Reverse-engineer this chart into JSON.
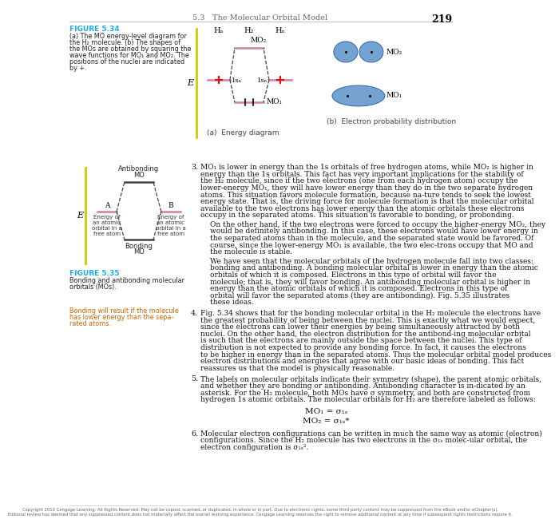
{
  "page_title": "5.3   The Molecular Orbital Model",
  "page_number": "219",
  "fig34_title": "FIGURE 5.34",
  "fig34_caption_lines": [
    "(a) The MO energy-level diagram for",
    "the H₂ molecule. (b) The shapes of",
    "the MOs are obtained by squaring the",
    "wave functions for MO₁ and MO₂. The",
    "positions of the nuclei are indicated",
    "by +."
  ],
  "fig34a_label": "(a)  Energy diagram",
  "fig34b_label": "(b)  Electron probability distribution",
  "fig35_title": "FIGURE 5.35",
  "fig35_caption_lines": [
    "Bonding and antibonding molecular",
    "orbitals (MOs)."
  ],
  "bonding_caption_lines": [
    "Bonding will result if the molecule",
    "has lower energy than the sepa-",
    "rated atoms."
  ],
  "copyright_text": "Copyright 2010 Cengage Learning. All Rights Reserved. May not be copied, scanned, or duplicated, in whole or in part. Due to electronic rights, some third party content may be suppressed from the eBook and/or eChapter(s). Editorial review has deemed that any suppressed content does not materially affect the overall learning experience. Cengage Learning reserves the right to remove additional content at any time if subsequent rights restrictions require it.",
  "bg_color": "#ffffff",
  "figure_title_color": "#1aace6",
  "bonding_color": "#cc6600",
  "line_pink": "#d080a0",
  "line_dark": "#444444",
  "axis_color": "#cccc00",
  "blob_color": "#6699cc",
  "blob_edge": "#2255aa",
  "text_color": "#111111",
  "caption_color": "#222222",
  "header_color": "#888888",
  "header_num_color": "#000000"
}
